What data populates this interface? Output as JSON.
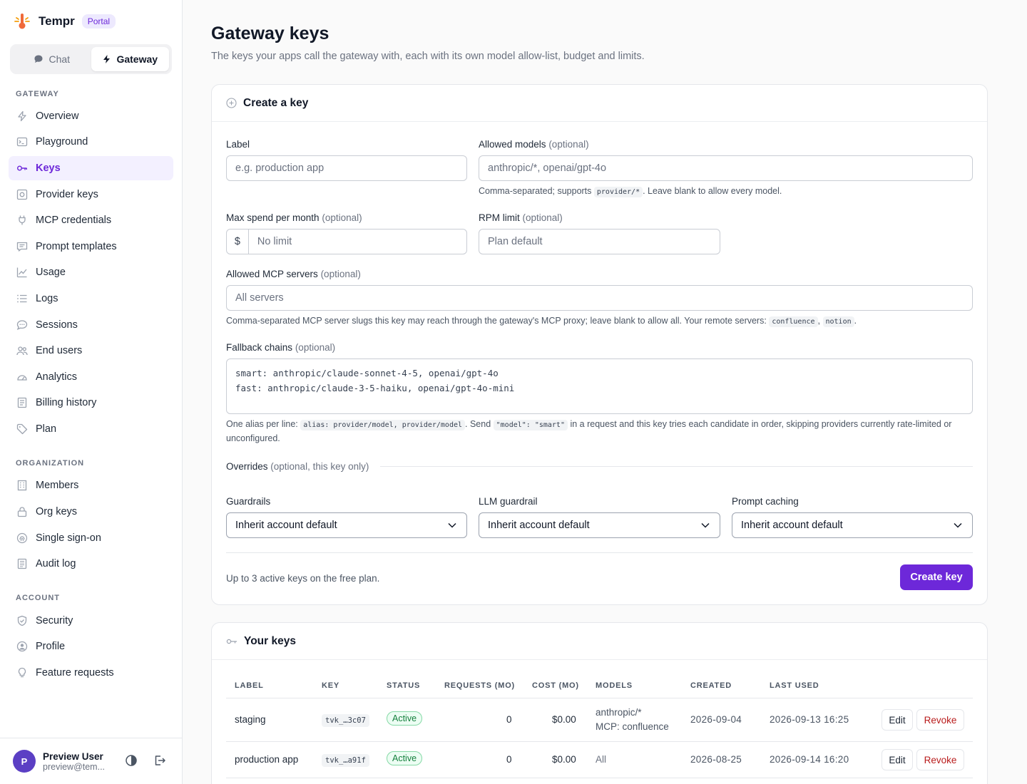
{
  "brand": {
    "name": "Tempr",
    "badge": "Portal"
  },
  "mode_switch": {
    "chat": "Chat",
    "gateway": "Gateway"
  },
  "nav": {
    "gateway_heading": "GATEWAY",
    "gateway_items": [
      "Overview",
      "Playground",
      "Keys",
      "Provider keys",
      "MCP credentials",
      "Prompt templates",
      "Usage",
      "Logs",
      "Sessions",
      "End users",
      "Analytics",
      "Billing history",
      "Plan"
    ],
    "organization_heading": "ORGANIZATION",
    "organization_items": [
      "Members",
      "Org keys",
      "Single sign-on",
      "Audit log"
    ],
    "account_heading": "ACCOUNT",
    "account_items": [
      "Security",
      "Profile",
      "Feature requests"
    ]
  },
  "user": {
    "initial": "P",
    "name": "Preview User",
    "email": "preview@tem..."
  },
  "page": {
    "title": "Gateway keys",
    "subtitle": "The keys your apps call the gateway with, each with its own model allow-list, budget and limits."
  },
  "create": {
    "header": "Create a key",
    "label": {
      "label": "Label",
      "placeholder": "e.g. production app"
    },
    "models": {
      "label": "Allowed models",
      "optional": "(optional)",
      "placeholder": "anthropic/*, openai/gpt-4o",
      "help_pre": "Comma-separated; supports",
      "help_code": "provider/*",
      "help_post": ". Leave blank to allow every model."
    },
    "spend": {
      "label": "Max spend per month",
      "optional": "(optional)",
      "prefix": "$",
      "placeholder": "No limit"
    },
    "rpm": {
      "label": "RPM limit",
      "optional": "(optional)",
      "placeholder": "Plan default"
    },
    "mcp": {
      "label": "Allowed MCP servers",
      "optional": "(optional)",
      "placeholder": "All servers",
      "help_pre": "Comma-separated MCP server slugs this key may reach through the gateway's MCP proxy; leave blank to allow all. Your remote servers:",
      "server1": "confluence",
      "sep": ",",
      "server2": "notion",
      "help_post": "."
    },
    "fallback": {
      "label": "Fallback chains",
      "optional": "(optional)",
      "value": "smart: anthropic/claude-sonnet-4-5, openai/gpt-4o\nfast: anthropic/claude-3-5-haiku, openai/gpt-4o-mini",
      "help_pre": "One alias per line:",
      "help_code1": "alias: provider/model, provider/model",
      "help_mid": ". Send",
      "help_code2": "\"model\": \"smart\"",
      "help_post": "in a request and this key tries each candidate in order, skipping providers currently rate-limited or unconfigured."
    },
    "overrides": {
      "label": "Overrides",
      "optional": "(optional, this key only)"
    },
    "guardrails": {
      "label": "Guardrails",
      "value": "Inherit account default"
    },
    "llm_guardrail": {
      "label": "LLM guardrail",
      "value": "Inherit account default"
    },
    "prompt_caching": {
      "label": "Prompt caching",
      "value": "Inherit account default"
    },
    "footer_note": "Up to 3 active keys on the free plan.",
    "submit": "Create key"
  },
  "keys": {
    "header": "Your keys",
    "columns": [
      "LABEL",
      "KEY",
      "STATUS",
      "REQUESTS (MO)",
      "COST (MO)",
      "MODELS",
      "CREATED",
      "LAST USED"
    ],
    "rows": [
      {
        "label": "staging",
        "key": "tvk_…3c07",
        "status": "Active",
        "requests": "0",
        "cost": "$0.00",
        "models_line1": "anthropic/*",
        "models_line2": "MCP: confluence",
        "created": "2026-09-04",
        "last_used": "2026-09-13 16:25",
        "edit": "Edit",
        "revoke": "Revoke"
      },
      {
        "label": "production app",
        "key": "tvk_…a91f",
        "status": "Active",
        "requests": "0",
        "cost": "$0.00",
        "models_line1": "All",
        "models_line2": "",
        "created": "2026-08-25",
        "last_used": "2026-09-14 16:20",
        "edit": "Edit",
        "revoke": "Revoke"
      }
    ]
  },
  "colors": {
    "accent": "#6d28d9",
    "accent_soft": "#f3f0ff",
    "success": "#15803d",
    "danger": "#b91c1c"
  }
}
